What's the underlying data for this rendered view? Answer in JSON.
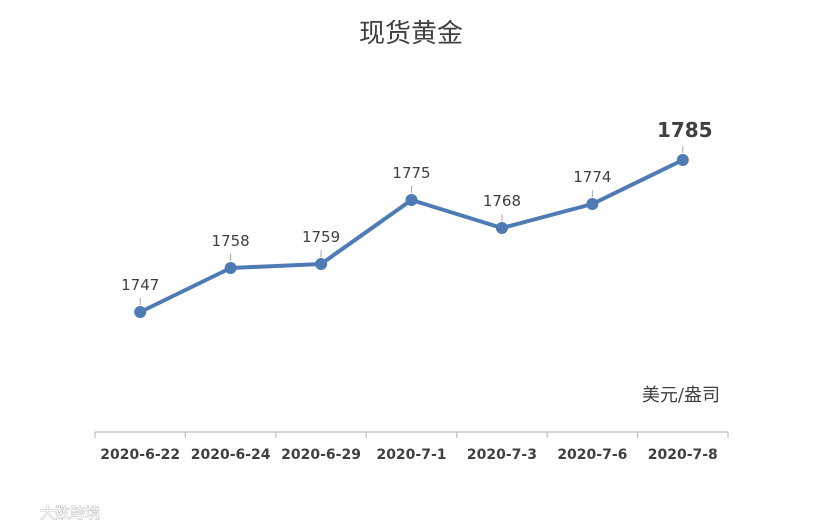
{
  "chart_data": {
    "type": "line",
    "title": "现货黄金",
    "unit_label": "美元/盎司",
    "categories": [
      "2020-6-22",
      "2020-6-24",
      "2020-6-29",
      "2020-7-1",
      "2020-7-3",
      "2020-7-6",
      "2020-7-8"
    ],
    "values": [
      1747,
      1758,
      1759,
      1775,
      1768,
      1774,
      1785
    ],
    "ylim": [
      1710,
      1795
    ],
    "grid": false,
    "legend": "none",
    "line_color": "#4f7bb5",
    "highlight_last_label": true
  },
  "watermark": "大数跨境"
}
